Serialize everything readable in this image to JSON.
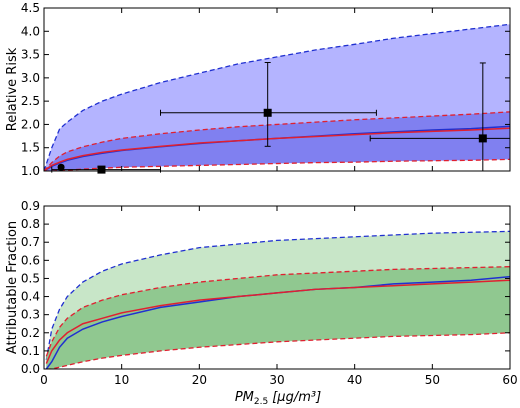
{
  "figure": {
    "xlabel_main": "PM",
    "xlabel_sub": "2.5",
    "xlabel_units": "[μg/m³]"
  },
  "chart_data": [
    {
      "type": "line",
      "panel": "top",
      "title": "",
      "xlabel": "",
      "ylabel": "Relative Risk",
      "xlim": [
        0,
        60
      ],
      "ylim": [
        1.0,
        4.5
      ],
      "xticks": [
        0,
        10,
        20,
        30,
        40,
        50,
        60
      ],
      "yticks": [
        1.0,
        1.5,
        2.0,
        2.5,
        3.0,
        3.5,
        4.0,
        4.5
      ],
      "show_x_tick_labels": false,
      "grid": false,
      "legend": "none",
      "series": [
        {
          "style": "band",
          "fill": "#b4b4ff",
          "edge": "#2030d0",
          "dash": true,
          "x": [
            0,
            1,
            2,
            3,
            5,
            7.5,
            10,
            15,
            20,
            25,
            30,
            35,
            40,
            45,
            50,
            55,
            60
          ],
          "y_low": [
            1.0,
            1.02,
            1.05,
            1.08,
            1.11,
            1.15,
            1.17,
            1.2,
            1.23,
            1.26,
            1.28,
            1.3,
            1.32,
            1.33,
            1.35,
            1.36,
            1.38
          ],
          "y_high": [
            1.0,
            1.5,
            1.9,
            2.05,
            2.3,
            2.5,
            2.65,
            2.9,
            3.1,
            3.3,
            3.45,
            3.6,
            3.72,
            3.85,
            3.95,
            4.05,
            4.15
          ]
        },
        {
          "style": "band",
          "fill": "#8080f0",
          "edge": "#e02030",
          "dash": true,
          "x": [
            0,
            1,
            2,
            3,
            5,
            7.5,
            10,
            15,
            20,
            25,
            30,
            35,
            40,
            45,
            50,
            55,
            60
          ],
          "y_low": [
            1.0,
            1.0,
            1.01,
            1.02,
            1.04,
            1.06,
            1.08,
            1.1,
            1.12,
            1.14,
            1.16,
            1.18,
            1.19,
            1.21,
            1.22,
            1.23,
            1.25
          ],
          "y_high": [
            1.0,
            1.18,
            1.32,
            1.41,
            1.52,
            1.62,
            1.7,
            1.8,
            1.88,
            1.95,
            2.0,
            2.05,
            2.1,
            2.14,
            2.18,
            2.22,
            2.27
          ]
        },
        {
          "style": "line",
          "color": "#2030d0",
          "x": [
            0,
            1,
            2,
            3,
            5,
            7.5,
            10,
            15,
            20,
            25,
            30,
            35,
            40,
            45,
            50,
            55,
            60
          ],
          "y": [
            1.0,
            1.1,
            1.17,
            1.23,
            1.31,
            1.38,
            1.44,
            1.52,
            1.59,
            1.65,
            1.7,
            1.75,
            1.8,
            1.84,
            1.88,
            1.91,
            1.96
          ]
        },
        {
          "style": "line",
          "color": "#e02030",
          "x": [
            0,
            1,
            2,
            3,
            5,
            7.5,
            10,
            15,
            20,
            25,
            30,
            35,
            40,
            45,
            50,
            55,
            60
          ],
          "y": [
            1.0,
            1.12,
            1.19,
            1.25,
            1.33,
            1.4,
            1.45,
            1.53,
            1.6,
            1.65,
            1.7,
            1.74,
            1.78,
            1.82,
            1.85,
            1.88,
            1.92
          ]
        },
        {
          "style": "errorbar",
          "color": "#000000",
          "points": [
            {
              "x": 2.2,
              "y": 1.08,
              "x_low": 2.2,
              "x_high": 2.2,
              "y_low": 1.03,
              "y_high": 1.12,
              "marker": "circle"
            },
            {
              "x": 7.4,
              "y": 1.03,
              "x_low": 1.0,
              "x_high": 15.0,
              "y_low": 1.03,
              "y_high": 1.03,
              "marker": "square"
            },
            {
              "x": 28.8,
              "y": 2.25,
              "x_low": 15.0,
              "x_high": 42.8,
              "y_low": 1.53,
              "y_high": 3.33,
              "marker": "square"
            },
            {
              "x": 56.5,
              "y": 1.7,
              "x_low": 42.0,
              "x_high": 60.0,
              "y_low": 1.0,
              "y_high": 3.32,
              "marker": "square"
            }
          ]
        }
      ]
    },
    {
      "type": "line",
      "panel": "bottom",
      "title": "",
      "xlabel": "PM2.5 [μg/m³]",
      "ylabel": "Attributable Fraction",
      "xlim": [
        0,
        60
      ],
      "ylim": [
        0.0,
        0.9
      ],
      "xticks": [
        0,
        10,
        20,
        30,
        40,
        50,
        60
      ],
      "yticks": [
        0.0,
        0.1,
        0.2,
        0.3,
        0.4,
        0.5,
        0.6,
        0.7,
        0.8,
        0.9
      ],
      "show_x_tick_labels": true,
      "grid": false,
      "legend": "none",
      "series": [
        {
          "style": "band",
          "fill": "#c8e6c8",
          "edge": "#2030d0",
          "dash": true,
          "x": [
            0.3,
            1,
            2,
            3,
            5,
            7.5,
            10,
            15,
            20,
            25,
            30,
            35,
            40,
            45,
            50,
            55,
            60
          ],
          "y_low": [
            0.0,
            0.0,
            0.04,
            0.06,
            0.1,
            0.13,
            0.15,
            0.17,
            0.19,
            0.21,
            0.22,
            0.23,
            0.24,
            0.25,
            0.26,
            0.27,
            0.28
          ],
          "y_high": [
            0.05,
            0.22,
            0.33,
            0.4,
            0.48,
            0.54,
            0.58,
            0.63,
            0.67,
            0.69,
            0.71,
            0.72,
            0.73,
            0.74,
            0.75,
            0.755,
            0.76
          ]
        },
        {
          "style": "band",
          "fill": "#90c890",
          "edge": "#e02030",
          "dash": true,
          "x": [
            0.3,
            1,
            2,
            3,
            5,
            7.5,
            10,
            15,
            20,
            25,
            30,
            35,
            40,
            45,
            50,
            55,
            60
          ],
          "y_low": [
            0.0,
            0.0,
            0.01,
            0.02,
            0.04,
            0.06,
            0.075,
            0.1,
            0.12,
            0.135,
            0.15,
            0.16,
            0.17,
            0.18,
            0.185,
            0.19,
            0.2
          ],
          "y_high": [
            0.07,
            0.15,
            0.23,
            0.28,
            0.34,
            0.38,
            0.41,
            0.45,
            0.48,
            0.5,
            0.52,
            0.53,
            0.54,
            0.55,
            0.555,
            0.56,
            0.565
          ]
        },
        {
          "style": "line",
          "color": "#2030d0",
          "x": [
            0.3,
            1,
            2,
            3,
            5,
            7.5,
            10,
            15,
            20,
            25,
            30,
            35,
            40,
            45,
            50,
            55,
            60
          ],
          "y": [
            0.0,
            0.04,
            0.12,
            0.17,
            0.22,
            0.26,
            0.29,
            0.34,
            0.37,
            0.4,
            0.42,
            0.44,
            0.45,
            0.47,
            0.48,
            0.49,
            0.51
          ]
        },
        {
          "style": "line",
          "color": "#e02030",
          "x": [
            0.3,
            1,
            2,
            3,
            5,
            7.5,
            10,
            15,
            20,
            25,
            30,
            35,
            40,
            45,
            50,
            55,
            60
          ],
          "y": [
            0.03,
            0.1,
            0.16,
            0.2,
            0.25,
            0.28,
            0.31,
            0.35,
            0.38,
            0.4,
            0.42,
            0.44,
            0.45,
            0.46,
            0.47,
            0.48,
            0.49
          ]
        }
      ]
    }
  ]
}
